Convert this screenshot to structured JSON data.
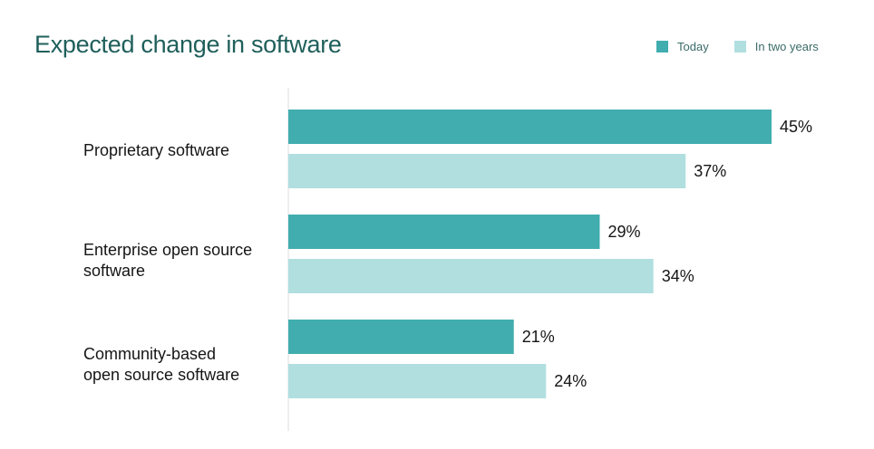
{
  "colors": {
    "today": "#41adaf",
    "in_two_years": "#b1dfe0",
    "title": "#1f5f5b",
    "axis": "#dddddd",
    "text": "#151515"
  },
  "chart_data": {
    "type": "bar",
    "orientation": "horizontal",
    "title": "Expected change in software",
    "legend_position": "top-right",
    "grid": false,
    "categories": [
      [
        "Proprietary software"
      ],
      [
        "Enterprise open source",
        "software"
      ],
      [
        "Community-based",
        "open source software"
      ]
    ],
    "series": [
      {
        "name": "Today",
        "values": [
          45,
          29,
          21
        ],
        "labels": [
          "45%",
          "29%",
          "21%"
        ]
      },
      {
        "name": "In two years",
        "values": [
          37,
          34,
          24
        ],
        "labels": [
          "37%",
          "34%",
          "24%"
        ]
      }
    ],
    "xlim": [
      0,
      50
    ]
  }
}
